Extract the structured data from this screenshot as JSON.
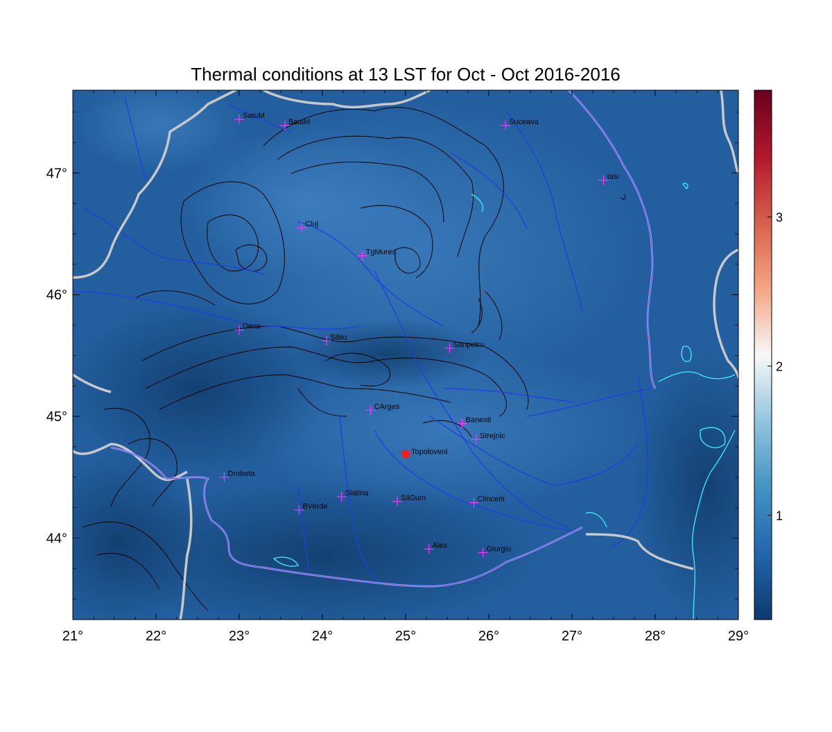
{
  "title": "Thermal conditions at 13 LST for Oct - Oct  2016-2016",
  "map": {
    "lon_range": [
      21,
      29
    ],
    "lat_range": [
      43.33,
      47.68
    ],
    "x_ticks": [
      "21°",
      "22°",
      "23°",
      "24°",
      "25°",
      "26°",
      "27°",
      "28°",
      "29°"
    ],
    "y_ticks": [
      "44°",
      "45°",
      "46°",
      "47°"
    ],
    "x_tick_values": [
      21,
      22,
      23,
      24,
      25,
      26,
      27,
      28,
      29
    ],
    "y_tick_values": [
      44,
      45,
      46,
      47
    ],
    "field_color_low": "#13467e",
    "field_color_mid": "#2b6cb0",
    "border_color": "#c8c8c8",
    "river_color": "#1f3fe0",
    "coast_color": "#3ff0ff",
    "danube_color": "#c9a8ff",
    "contour_color": "#000000"
  },
  "colorbar": {
    "ticks": [
      "1",
      "2",
      "3"
    ],
    "tick_values": [
      1,
      2,
      3
    ],
    "range": [
      0.3,
      3.85
    ],
    "colors": [
      "#0b3a6e",
      "#2166ac",
      "#4393c3",
      "#92c5de",
      "#f7f7f7",
      "#f4a582",
      "#d6604d",
      "#b2182b",
      "#67001f"
    ]
  },
  "stations": [
    {
      "name": "SatuM",
      "lon": 23.0,
      "lat": 47.44
    },
    {
      "name": "BaiaM",
      "lon": 23.55,
      "lat": 47.39
    },
    {
      "name": "Suceava",
      "lon": 26.2,
      "lat": 47.39
    },
    {
      "name": "Iasi",
      "lon": 27.38,
      "lat": 46.94
    },
    {
      "name": "Cluj",
      "lon": 23.75,
      "lat": 46.55
    },
    {
      "name": "TgMures",
      "lon": 24.48,
      "lat": 46.32
    },
    {
      "name": "Deva",
      "lon": 23.0,
      "lat": 45.71
    },
    {
      "name": "Sibiu",
      "lon": 24.05,
      "lat": 45.62
    },
    {
      "name": "Sanpetru",
      "lon": 25.53,
      "lat": 45.56
    },
    {
      "name": "CArges",
      "lon": 24.58,
      "lat": 45.05
    },
    {
      "name": "Banesti",
      "lon": 25.68,
      "lat": 44.94
    },
    {
      "name": "Strejnic",
      "lon": 25.85,
      "lat": 44.81
    },
    {
      "name": "Drobeta",
      "lon": 22.82,
      "lat": 44.5
    },
    {
      "name": "Slatina",
      "lon": 24.23,
      "lat": 44.34
    },
    {
      "name": "SilGum",
      "lon": 24.9,
      "lat": 44.3
    },
    {
      "name": "Clinceni",
      "lon": 25.82,
      "lat": 44.29
    },
    {
      "name": "BVerde",
      "lon": 23.72,
      "lat": 44.23
    },
    {
      "name": "Alex",
      "lon": 25.28,
      "lat": 43.91
    },
    {
      "name": "Giurgiu",
      "lon": 25.93,
      "lat": 43.88
    }
  ],
  "highlight_station": {
    "name": "Topoloveni",
    "lon": 25.0,
    "lat": 44.69
  }
}
